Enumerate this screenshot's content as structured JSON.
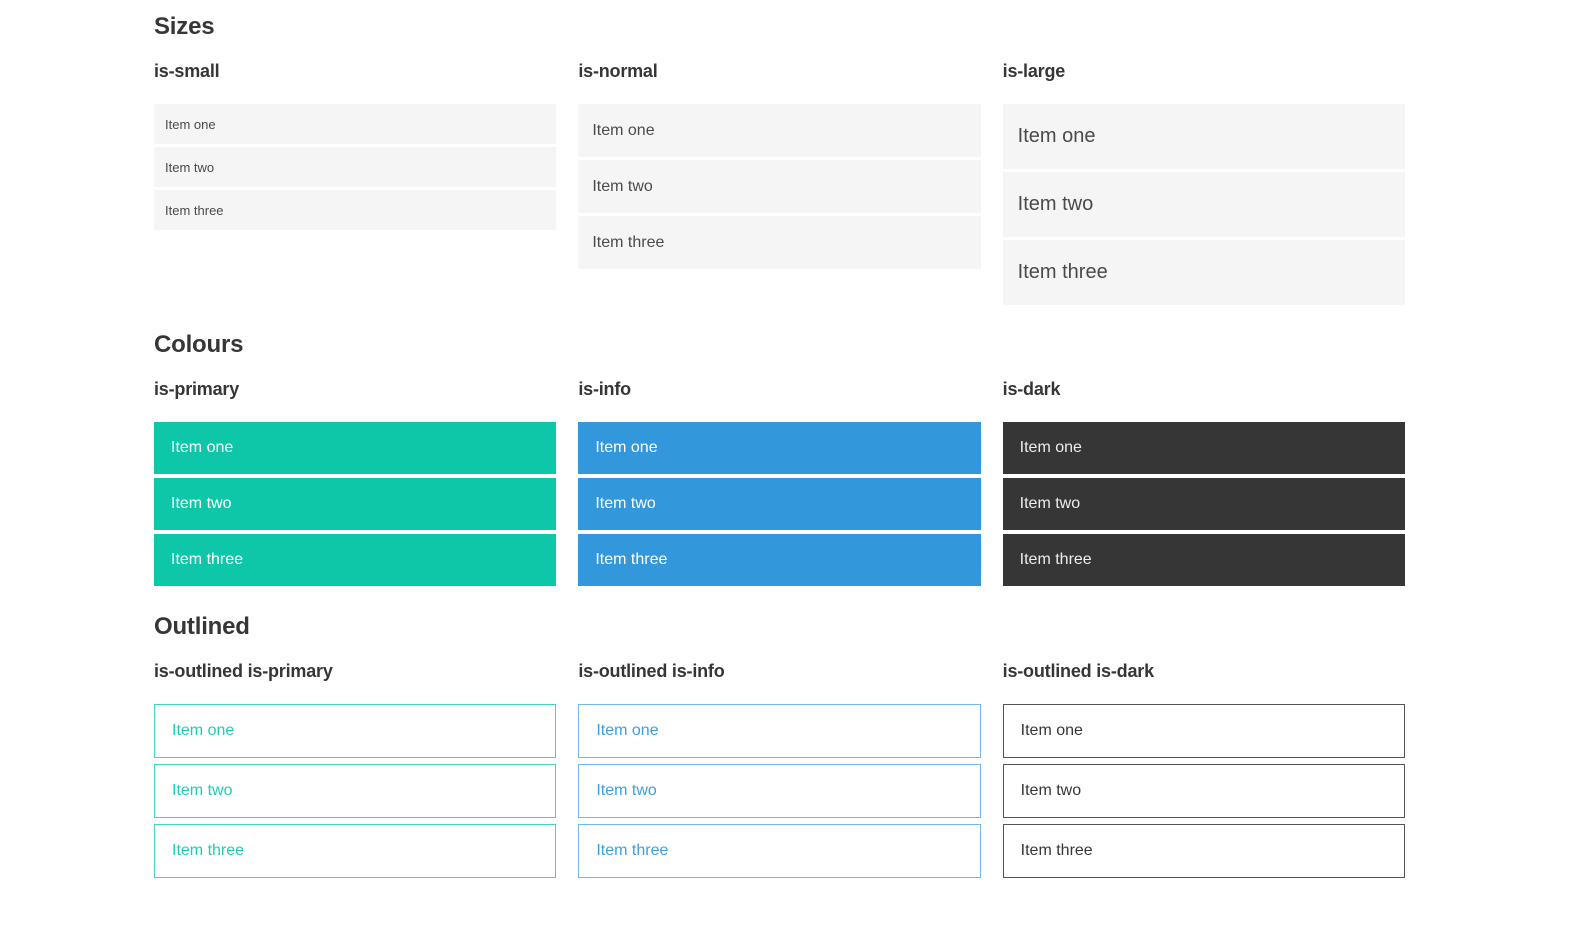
{
  "colors": {
    "primary": "#0dc7a8",
    "info": "#3298db",
    "dark": "#363636",
    "heading_text": "#363636",
    "size_item_bg": "#f5f5f5",
    "size_item_text": "#4a4a4a",
    "filled_text": "#ffffff",
    "dark_item_text": "#ededed",
    "outlined_primary_border": "#45d5be",
    "outlined_primary_text": "#1fceb1",
    "outlined_info_border": "#74b7e8",
    "outlined_info_text": "#3d9fde",
    "outlined_dark_border": "#555555",
    "outlined_dark_text": "#363636"
  },
  "sections": [
    {
      "title": "Sizes",
      "columns": [
        {
          "heading": "is-small",
          "items": [
            "Item one",
            "Item two",
            "Item three"
          ]
        },
        {
          "heading": "is-normal",
          "items": [
            "Item one",
            "Item two",
            "Item three"
          ]
        },
        {
          "heading": "is-large",
          "items": [
            "Item one",
            "Item two",
            "Item three"
          ]
        }
      ]
    },
    {
      "title": "Colours",
      "columns": [
        {
          "heading": "is-primary",
          "items": [
            "Item one",
            "Item two",
            "Item three"
          ]
        },
        {
          "heading": "is-info",
          "items": [
            "Item one",
            "Item two",
            "Item three"
          ]
        },
        {
          "heading": "is-dark",
          "items": [
            "Item one",
            "Item two",
            "Item three"
          ]
        }
      ]
    },
    {
      "title": "Outlined",
      "columns": [
        {
          "heading": "is-outlined is-primary",
          "items": [
            "Item one",
            "Item two",
            "Item three"
          ]
        },
        {
          "heading": "is-outlined is-info",
          "items": [
            "Item one",
            "Item two",
            "Item three"
          ]
        },
        {
          "heading": "is-outlined is-dark",
          "items": [
            "Item one",
            "Item two",
            "Item three"
          ]
        }
      ]
    }
  ]
}
